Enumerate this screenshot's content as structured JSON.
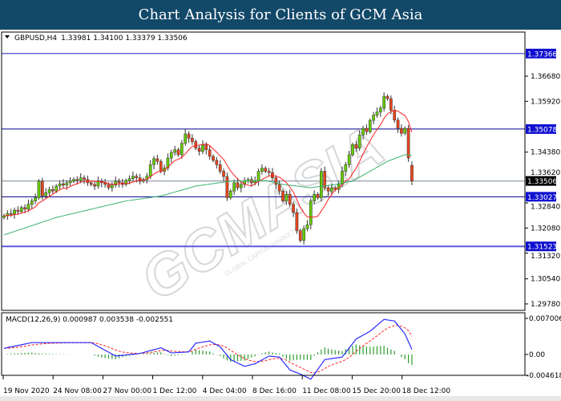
{
  "title": "Chart Analysis for Clients of GCM Asia",
  "header": {
    "symbol": "GBPUSD,H4",
    "ohlc": "1.33981 1.34100 1.33379 1.33506"
  },
  "watermark": {
    "text": "GCMASIA",
    "subtext": "GLOBAL CAPITAL MARKETS"
  },
  "colors": {
    "title_bg": "#124868",
    "bull": "#66cc00",
    "bear": "#e8461e",
    "ma_fast": "#ff2020",
    "ma_slow": "#3cb371",
    "macd": "#2b2bff",
    "signal": "#ff2020",
    "hist": "#2e9e2e",
    "level": "#0000aa",
    "current": "#a0aab4"
  },
  "chart_data": [
    {
      "type": "candlestick",
      "symbol": "GBPUSD",
      "timeframe": "H4",
      "last_candle": {
        "open": 1.33981,
        "high": 1.341,
        "low": 1.33379,
        "close": 1.33506
      },
      "closes": [
        1.3245,
        1.3252,
        1.325,
        1.3262,
        1.3258,
        1.327,
        1.3265,
        1.328,
        1.329,
        1.33,
        1.335,
        1.3305,
        1.3315,
        1.3325,
        1.332,
        1.3335,
        1.3342,
        1.3338,
        1.3345,
        1.335,
        1.3355,
        1.3352,
        1.336,
        1.3355,
        1.3345,
        1.334,
        1.3335,
        1.335,
        1.3345,
        1.334,
        1.333,
        1.3338,
        1.335,
        1.3345,
        1.334,
        1.3352,
        1.3358,
        1.3365,
        1.336,
        1.335,
        1.3355,
        1.3365,
        1.34,
        1.3418,
        1.341,
        1.338,
        1.339,
        1.342,
        1.3437,
        1.3445,
        1.343,
        1.3465,
        1.3493,
        1.348,
        1.347,
        1.345,
        1.344,
        1.346,
        1.3445,
        1.3425,
        1.3413,
        1.34,
        1.338,
        1.3364,
        1.33,
        1.332,
        1.3345,
        1.333,
        1.334,
        1.335,
        1.3355,
        1.3345,
        1.335,
        1.338,
        1.3389,
        1.338,
        1.3376,
        1.336,
        1.334,
        1.332,
        1.329,
        1.331,
        1.328,
        1.3255,
        1.32,
        1.317,
        1.3206,
        1.3218,
        1.329,
        1.331,
        1.33,
        1.338,
        1.333,
        1.332,
        1.333,
        1.3325,
        1.334,
        1.338,
        1.34,
        1.343,
        1.3461,
        1.345,
        1.349,
        1.351,
        1.35,
        1.3534,
        1.355,
        1.3559,
        1.3571,
        1.3607,
        1.36,
        1.3565,
        1.3535,
        1.351,
        1.3495,
        1.351,
        1.342,
        1.33506
      ],
      "first_open": 1.324,
      "ma_fast_period": 8,
      "ma_slow_points": [
        [
          0,
          1.3187
        ],
        [
          15,
          1.324
        ],
        [
          35,
          1.329
        ],
        [
          45,
          1.3305
        ],
        [
          55,
          1.3335
        ],
        [
          65,
          1.335
        ],
        [
          75,
          1.3352
        ],
        [
          80,
          1.334
        ],
        [
          88,
          1.333
        ],
        [
          95,
          1.334
        ],
        [
          100,
          1.335
        ],
        [
          105,
          1.338
        ],
        [
          110,
          1.341
        ],
        [
          115,
          1.343
        ],
        [
          117,
          1.3428
        ]
      ],
      "levels": [
        {
          "price": "1.37366",
          "color": "#2020c0"
        },
        {
          "price": "1.35078",
          "color": "#00008b"
        },
        {
          "price": "1.33027",
          "color": "#00008b"
        },
        {
          "price": "1.31523",
          "color": "#5a5ae0"
        }
      ],
      "current_price": "1.33506",
      "y_ticks": [
        "1.36680",
        "1.35920",
        "1.34380",
        "1.33620",
        "1.32840",
        "1.32080",
        "1.31320",
        "1.30540",
        "1.29780"
      ],
      "ylim": [
        1.2978,
        1.378
      ],
      "x_ticks": [
        "19 Nov 2020",
        "24 Nov 08:00",
        "27 Nov 00:00",
        "1 Dec 12:00",
        "4 Dec 04:00",
        "8 Dec 16:00",
        "11 Dec 08:00",
        "15 Dec 20:00",
        "18 Dec 12:00"
      ]
    },
    {
      "type": "line",
      "title": "MACD(12,26,9) 0.000987 0.003538 -0.002551",
      "macd_points": [
        [
          0,
          0.0012
        ],
        [
          8,
          0.0023
        ],
        [
          25,
          0.0023
        ],
        [
          32,
          -0.0003
        ],
        [
          39,
          0.0002
        ],
        [
          45,
          0.0013
        ],
        [
          48,
          0.0003
        ],
        [
          53,
          0.0005
        ],
        [
          55,
          0.0022
        ],
        [
          59,
          0.0026
        ],
        [
          62,
          0.0015
        ],
        [
          65,
          -0.001
        ],
        [
          69,
          -0.0023
        ],
        [
          72,
          -0.0018
        ],
        [
          76,
          -0.0003
        ],
        [
          79,
          -0.0005
        ],
        [
          82,
          -0.003
        ],
        [
          85,
          -0.0038
        ],
        [
          88,
          -0.0048
        ],
        [
          92,
          -0.001
        ],
        [
          97,
          -0.0005
        ],
        [
          101,
          0.003
        ],
        [
          105,
          0.0045
        ],
        [
          109,
          0.0068
        ],
        [
          112,
          0.0065
        ],
        [
          115,
          0.004
        ],
        [
          117,
          0.000987
        ]
      ],
      "signal_last": 0.003538,
      "hist_last": -0.002551,
      "y_ticks": [
        "0.007006",
        "0.00",
        "-0.004618"
      ],
      "ylim": [
        -0.004618,
        0.007006
      ]
    }
  ]
}
